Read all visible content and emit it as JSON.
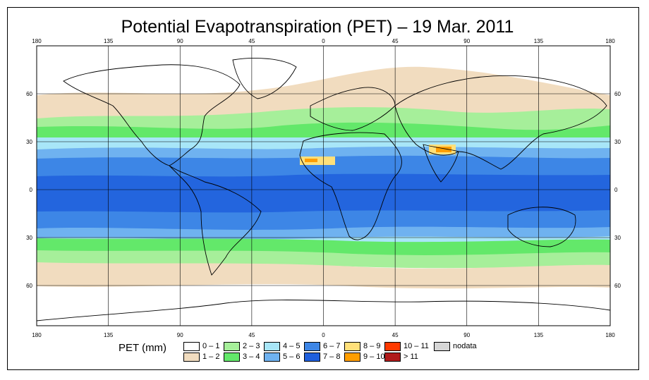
{
  "title": "Potential Evapotranspiration (PET) – 19 Mar. 2011",
  "axes": {
    "lon_ticks": [
      "180",
      "135",
      "90",
      "45",
      "0",
      "45",
      "90",
      "135",
      "180"
    ],
    "lat_ticks": [
      "60",
      "30",
      "0",
      "30",
      "60"
    ]
  },
  "legend": {
    "title": "PET (mm)",
    "items": [
      {
        "label": "0 – 1",
        "color": "#ffffff"
      },
      {
        "label": "1 – 2",
        "color": "#f1dcbf"
      },
      {
        "label": "2 – 3",
        "color": "#a6ef9a"
      },
      {
        "label": "3 – 4",
        "color": "#63e86a"
      },
      {
        "label": "4 – 5",
        "color": "#a8e6f8"
      },
      {
        "label": "5 – 6",
        "color": "#6fb2f0"
      },
      {
        "label": "6 – 7",
        "color": "#3d86e6"
      },
      {
        "label": "7 – 8",
        "color": "#1f5fdc"
      },
      {
        "label": "8 – 9",
        "color": "#ffe07a"
      },
      {
        "label": "9 – 10",
        "color": "#ff9e00"
      },
      {
        "label": "10 – 11",
        "color": "#ff3a00"
      },
      {
        "label": "> 11",
        "color": "#b01a1a"
      },
      {
        "label": "nodata",
        "color": "#d6d6d6"
      }
    ]
  }
}
